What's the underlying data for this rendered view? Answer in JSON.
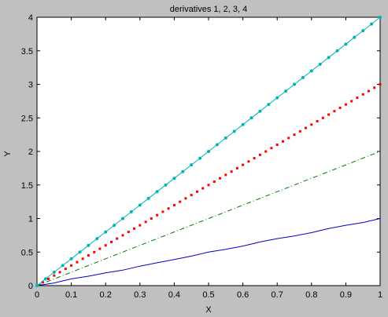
{
  "chart_data": {
    "type": "line",
    "title": "derivatives 1, 2, 3, 4",
    "xlabel": "X",
    "ylabel": "Y",
    "xlim": [
      0,
      1
    ],
    "ylim": [
      0,
      4
    ],
    "grid": false,
    "legend": "none",
    "xticks": [
      "0",
      "0.1",
      "0.2",
      "0.3",
      "0.4",
      "0.5",
      "0.6",
      "0.7",
      "0.8",
      "0.9",
      "1"
    ],
    "yticks": [
      "0",
      "0.5",
      "1",
      "1.5",
      "2",
      "2.5",
      "3",
      "3.5",
      "4"
    ],
    "series": [
      {
        "color": "#0000c8",
        "style": "solid",
        "x": [
          0,
          0.05,
          0.1,
          0.15,
          0.2,
          0.25,
          0.3,
          0.35,
          0.4,
          0.45,
          0.5,
          0.55,
          0.6,
          0.65,
          0.7,
          0.75,
          0.8,
          0.85,
          0.9,
          0.95,
          1
        ],
        "y": [
          0,
          0.04,
          0.1,
          0.14,
          0.19,
          0.23,
          0.29,
          0.34,
          0.39,
          0.44,
          0.5,
          0.54,
          0.59,
          0.65,
          0.7,
          0.74,
          0.79,
          0.85,
          0.9,
          0.94,
          1
        ]
      },
      {
        "color": "#007a00",
        "style": "dashdot",
        "x": [
          0,
          0.1,
          0.2,
          0.3,
          0.4,
          0.5,
          0.6,
          0.7,
          0.8,
          0.9,
          1
        ],
        "y": [
          0,
          0.2,
          0.4,
          0.6,
          0.8,
          1.0,
          1.2,
          1.4,
          1.6,
          1.8,
          2.0
        ]
      },
      {
        "color": "#ff0000",
        "style": "dotted",
        "x": [
          0,
          0.1,
          0.2,
          0.3,
          0.4,
          0.5,
          0.6,
          0.7,
          0.8,
          0.9,
          1
        ],
        "y": [
          0,
          0.3,
          0.6,
          0.9,
          1.2,
          1.5,
          1.8,
          2.1,
          2.4,
          2.7,
          3.0
        ]
      },
      {
        "color": "#00b4b4",
        "style": "solid-markers",
        "marker": "dot",
        "x": [
          0,
          0.025,
          0.05,
          0.075,
          0.1,
          0.125,
          0.15,
          0.175,
          0.2,
          0.225,
          0.25,
          0.275,
          0.3,
          0.325,
          0.35,
          0.375,
          0.4,
          0.425,
          0.45,
          0.475,
          0.5,
          0.525,
          0.55,
          0.575,
          0.6,
          0.625,
          0.65,
          0.675,
          0.7,
          0.725,
          0.75,
          0.775,
          0.8,
          0.825,
          0.85,
          0.875,
          0.9,
          0.925,
          0.95,
          0.975,
          1
        ],
        "y": [
          0,
          0.1,
          0.2,
          0.3,
          0.4,
          0.5,
          0.6,
          0.7,
          0.8,
          0.9,
          1.0,
          1.1,
          1.2,
          1.3,
          1.4,
          1.5,
          1.6,
          1.7,
          1.8,
          1.9,
          2.0,
          2.1,
          2.2,
          2.3,
          2.4,
          2.5,
          2.6,
          2.7,
          2.8,
          2.9,
          3.0,
          3.1,
          3.2,
          3.3,
          3.4,
          3.5,
          3.6,
          3.7,
          3.8,
          3.9,
          4.0
        ]
      }
    ]
  }
}
